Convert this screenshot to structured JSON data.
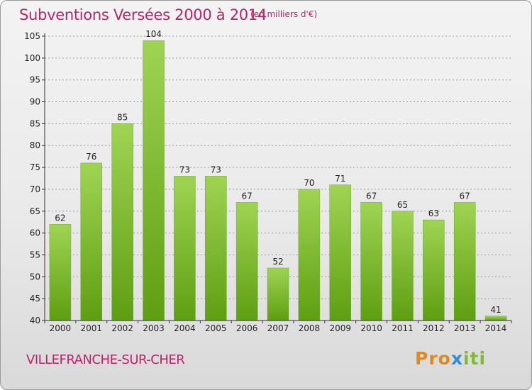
{
  "header": {
    "title": "Subventions Versées 2000 à 2014",
    "subtitle": "(en milliers d'€)"
  },
  "footer": {
    "commune": "VILLEFRANCHE-SUR-CHER",
    "logo_parts": [
      "Pro",
      "x",
      "iti"
    ]
  },
  "colors": {
    "bar_top": "#9fd453",
    "bar_bottom": "#5e9e12",
    "title": "#b5266b",
    "grid": "#9a9a9a"
  },
  "chart_data": {
    "type": "bar",
    "title": "Subventions Versées 2000 à 2014",
    "subtitle": "(en milliers d'€)",
    "xlabel": "",
    "ylabel": "",
    "categories": [
      "2000",
      "2001",
      "2002",
      "2003",
      "2004",
      "2005",
      "2006",
      "2007",
      "2008",
      "2009",
      "2010",
      "2011",
      "2012",
      "2013",
      "2014"
    ],
    "values": [
      62,
      76,
      85,
      104,
      73,
      73,
      67,
      52,
      70,
      71,
      67,
      65,
      63,
      67,
      41
    ],
    "ylim": [
      40,
      105
    ],
    "yticks": [
      40,
      45,
      50,
      55,
      60,
      65,
      70,
      75,
      80,
      85,
      90,
      95,
      100,
      105
    ],
    "grid": true,
    "legend": "none"
  }
}
